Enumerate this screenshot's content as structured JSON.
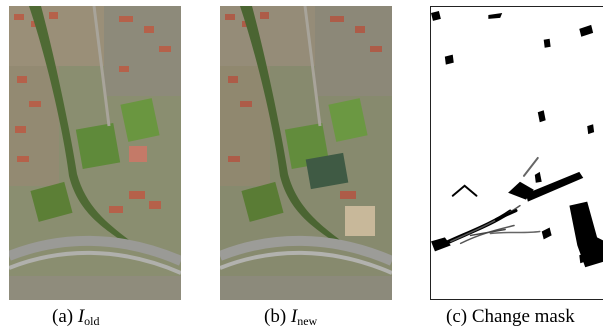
{
  "figure": {
    "panels": [
      {
        "label": "(a)",
        "symbol": "I",
        "subscript": "old"
      },
      {
        "label": "(b)",
        "symbol": "I",
        "subscript": "new"
      },
      {
        "label": "(c)",
        "caption": "Change mask"
      }
    ]
  },
  "colors": {
    "vegetation": "#5c7238",
    "roofs": "#b5614a",
    "road": "#9a9a96",
    "field": "#5f8a3a",
    "mask_change": "#000000",
    "mask_background": "#ffffff"
  }
}
